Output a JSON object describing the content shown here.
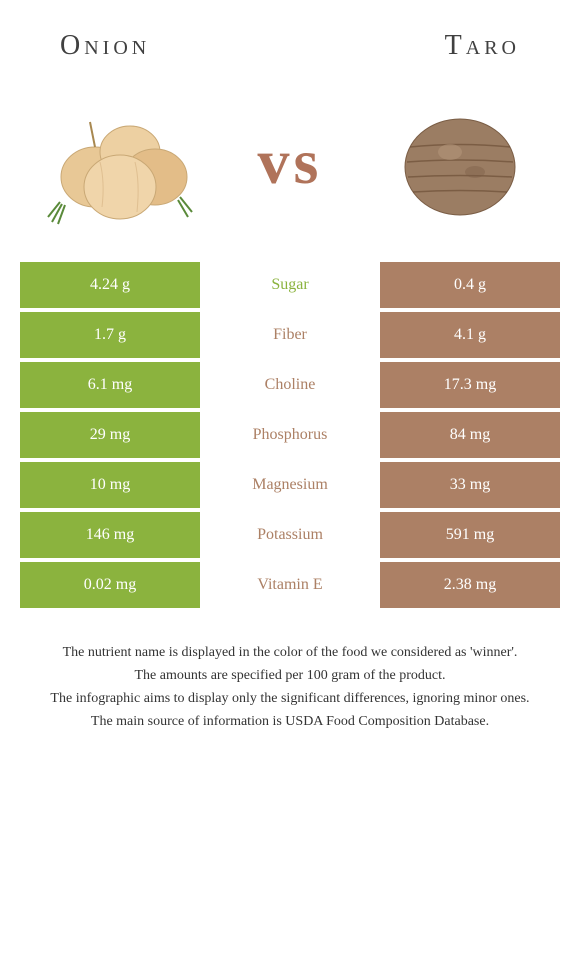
{
  "foods": {
    "left": {
      "name": "Onion",
      "color": "#8bb33e",
      "text_color": "#ffffff"
    },
    "right": {
      "name": "Taro",
      "color": "#ac8065",
      "text_color": "#ffffff"
    }
  },
  "vs_label": "vs",
  "vs_color": "#b0735a",
  "nutrients": [
    {
      "name": "Sugar",
      "left": "4.24 g",
      "right": "0.4 g",
      "winner": "left"
    },
    {
      "name": "Fiber",
      "left": "1.7 g",
      "right": "4.1 g",
      "winner": "right"
    },
    {
      "name": "Choline",
      "left": "6.1 mg",
      "right": "17.3 mg",
      "winner": "right"
    },
    {
      "name": "Phosphorus",
      "left": "29 mg",
      "right": "84 mg",
      "winner": "right"
    },
    {
      "name": "Magnesium",
      "left": "10 mg",
      "right": "33 mg",
      "winner": "right"
    },
    {
      "name": "Potassium",
      "left": "146 mg",
      "right": "591 mg",
      "winner": "right"
    },
    {
      "name": "Vitamin E",
      "left": "0.02 mg",
      "right": "2.38 mg",
      "winner": "right"
    }
  ],
  "row_style": {
    "left_bg_winner": "#8bb33e",
    "right_bg_winner": "#ac8065",
    "left_bg_loser": "#a5c464",
    "right_bg_loser": "#c8a891",
    "mid_color_left_win": "#8bb33e",
    "mid_color_right_win": "#ac8065"
  },
  "footer": {
    "line1": "The nutrient name is displayed in the color of the food we considered as 'winner'.",
    "line2": "The amounts are specified per 100 gram of the product.",
    "line3": "The infographic aims to display only the significant differences, ignoring minor ones.",
    "line4": "The main source of information is USDA Food Composition Database."
  }
}
